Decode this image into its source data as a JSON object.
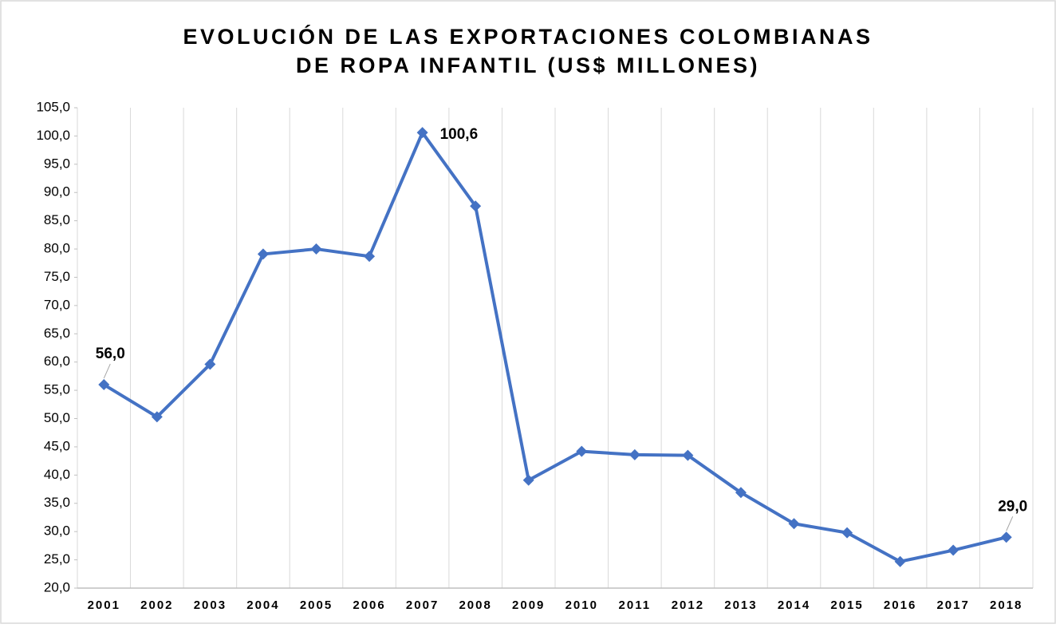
{
  "chart_data": {
    "type": "line",
    "title": [
      "EVOLUCIÓN DE LAS EXPORTACIONES COLOMBIANAS",
      "DE ROPA INFANTIL (US$ MILLONES)"
    ],
    "categories": [
      "2001",
      "2002",
      "2003",
      "2004",
      "2005",
      "2006",
      "2007",
      "2008",
      "2009",
      "2010",
      "2011",
      "2012",
      "2013",
      "2014",
      "2015",
      "2016",
      "2017",
      "2018"
    ],
    "series": [
      {
        "color": "#4472c4",
        "values": [
          56.0,
          50.3,
          59.6,
          79.1,
          80.0,
          78.7,
          100.6,
          87.6,
          39.1,
          44.2,
          43.6,
          43.5,
          36.9,
          31.4,
          29.8,
          24.7,
          26.7,
          29.0
        ],
        "value_labels": [
          "56,0",
          null,
          null,
          null,
          null,
          null,
          "100,6",
          null,
          null,
          null,
          null,
          null,
          null,
          null,
          null,
          null,
          null,
          "29,0"
        ]
      }
    ],
    "ylim": [
      20,
      105
    ],
    "yticks": [
      {
        "value": 20,
        "label": "20,0"
      },
      {
        "value": 25,
        "label": "25,0"
      },
      {
        "value": 30,
        "label": "30,0"
      },
      {
        "value": 35,
        "label": "35,0"
      },
      {
        "value": 40,
        "label": "40,0"
      },
      {
        "value": 45,
        "label": "45,0"
      },
      {
        "value": 50,
        "label": "50,0"
      },
      {
        "value": 55,
        "label": "55,0"
      },
      {
        "value": 60,
        "label": "60,0"
      },
      {
        "value": 65,
        "label": "65,0"
      },
      {
        "value": 70,
        "label": "70,0"
      },
      {
        "value": 75,
        "label": "75,0"
      },
      {
        "value": 80,
        "label": "80,0"
      },
      {
        "value": 85,
        "label": "85,0"
      },
      {
        "value": 90,
        "label": "90,0"
      },
      {
        "value": 95,
        "label": "95,0"
      },
      {
        "value": 100,
        "label": "100,0"
      },
      {
        "value": 105,
        "label": "105,0"
      }
    ],
    "grid": true
  }
}
